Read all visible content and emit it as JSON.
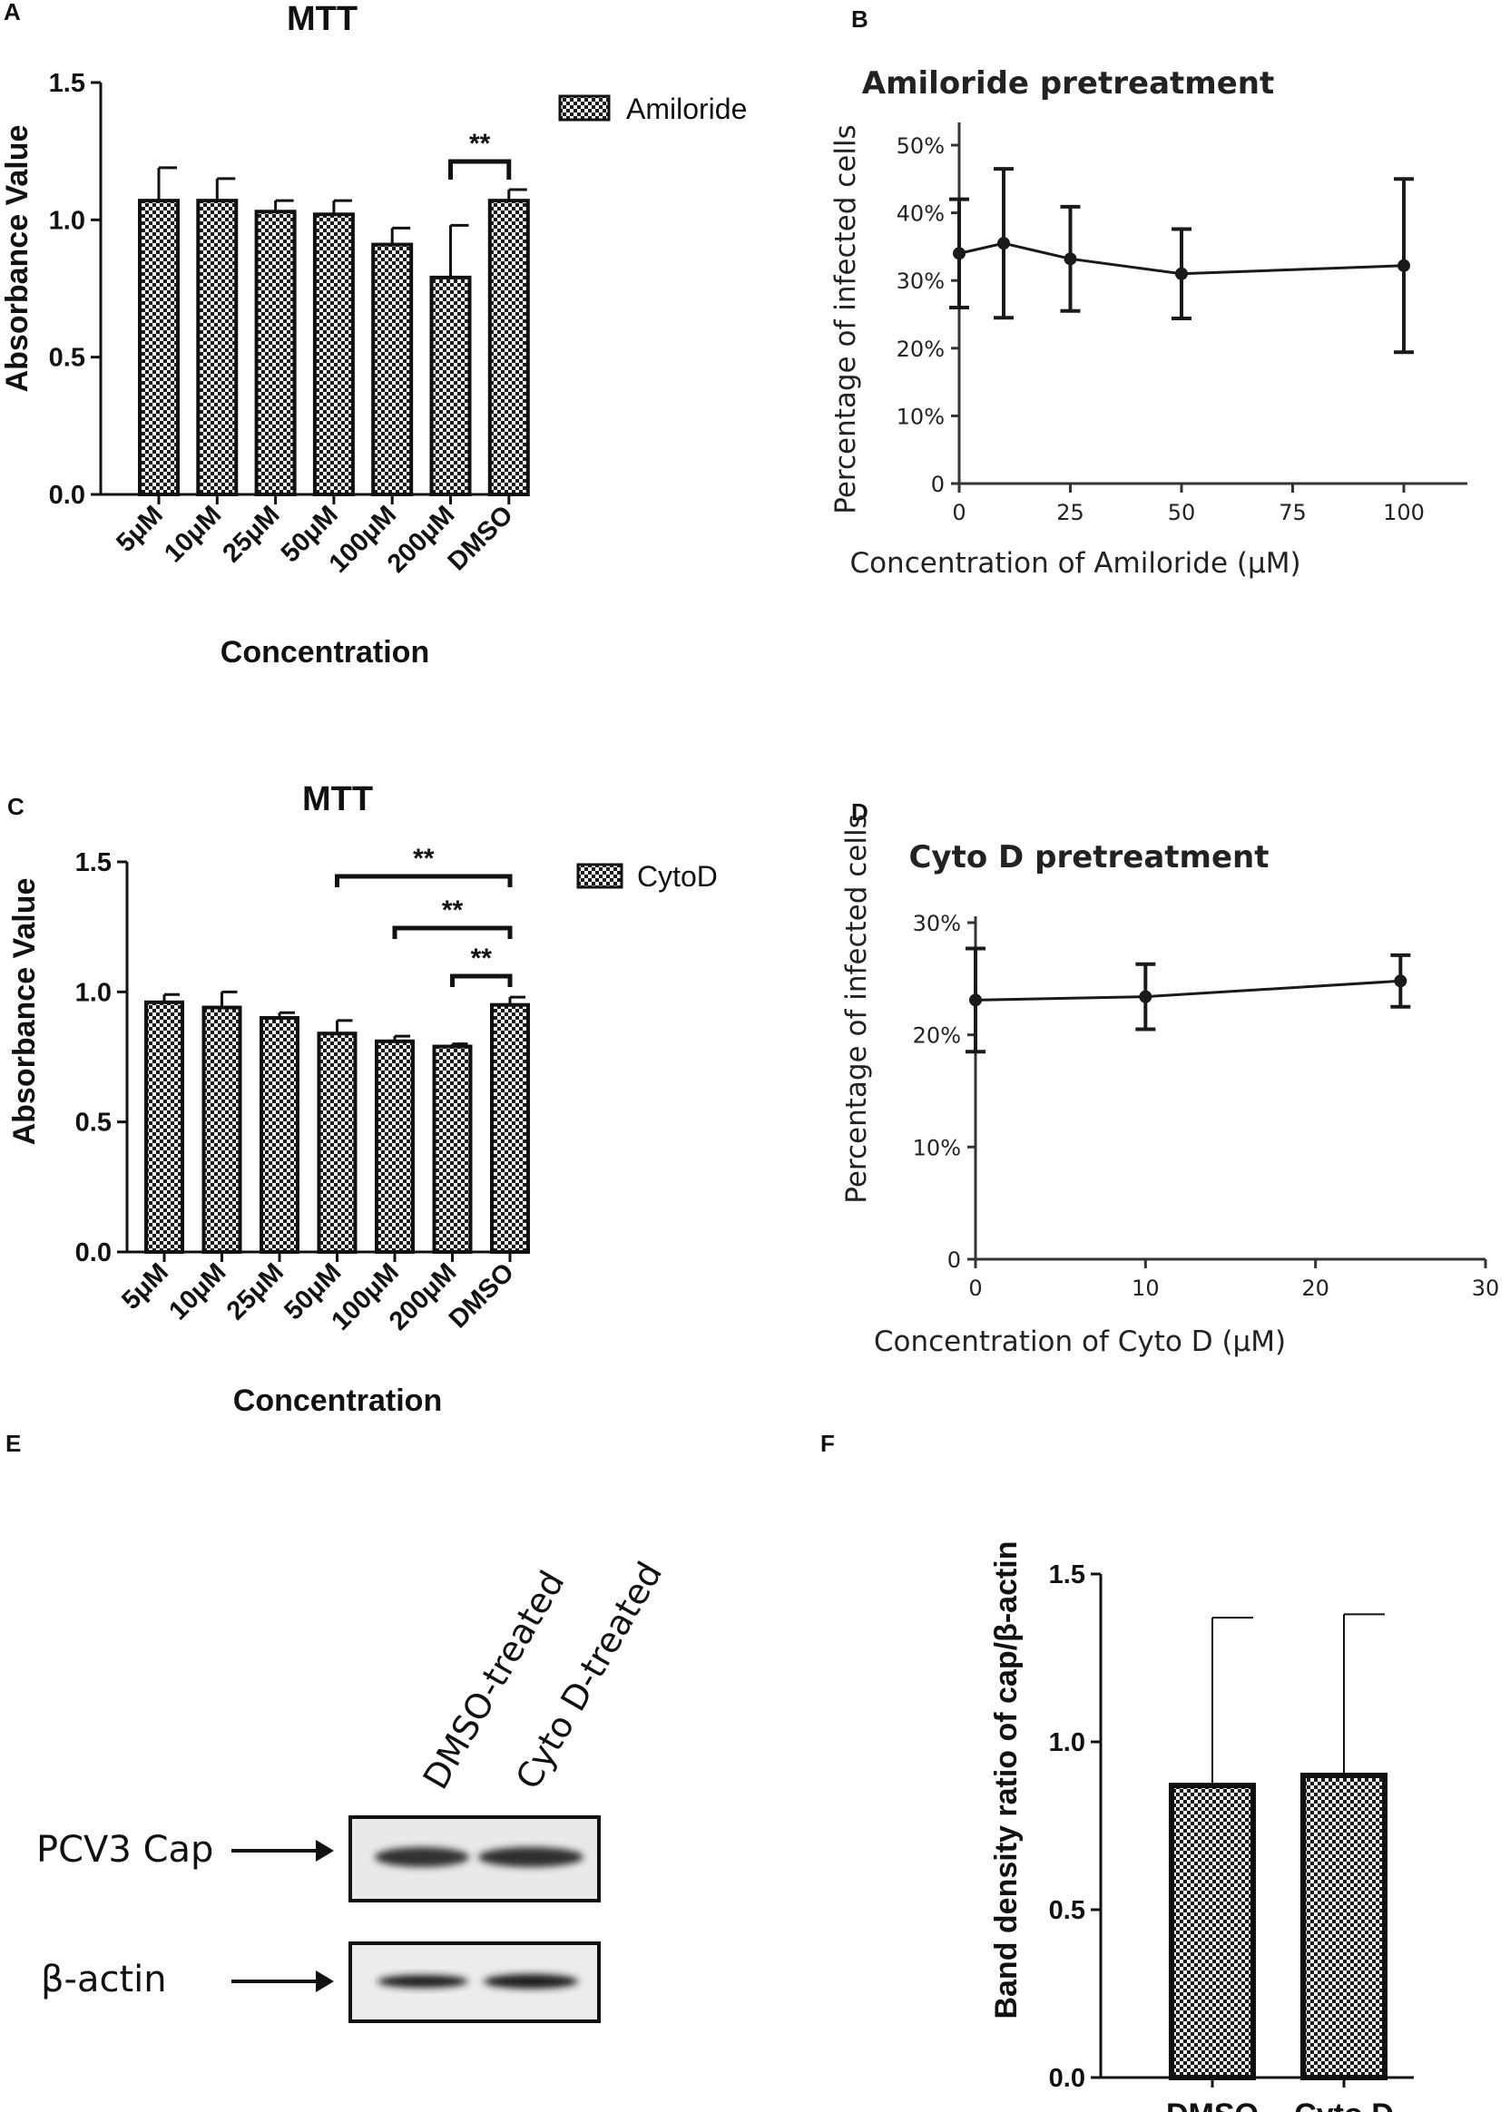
{
  "panel_labels": [
    "A",
    "B",
    "C",
    "D",
    "E",
    "F"
  ],
  "chart_data": [
    {
      "panel": "A",
      "type": "bar",
      "title": "MTT",
      "xlabel": "Concentration",
      "ylabel": "Absorbance Value",
      "categories": [
        "5μM",
        "10μM",
        "25μM",
        "50μM",
        "100μM",
        "200μM",
        "DMSO"
      ],
      "values": [
        1.07,
        1.07,
        1.03,
        1.02,
        0.91,
        0.79,
        1.07
      ],
      "errors": [
        0.12,
        0.08,
        0.04,
        0.05,
        0.06,
        0.19,
        0.04
      ],
      "ylim": [
        0,
        1.5
      ],
      "yticks": [
        "0.0",
        "0.5",
        "1.0",
        "1.5"
      ],
      "legend": [
        "Amiloride"
      ],
      "significance": [
        {
          "from": "200μM",
          "to": "DMSO",
          "label": "**"
        }
      ]
    },
    {
      "panel": "B",
      "type": "line",
      "title": "Amiloride pretreatment",
      "xlabel": "Concentration of Amiloride (μM)",
      "ylabel": "Percentage of infected cells",
      "x": [
        0,
        10,
        25,
        50,
        100
      ],
      "y": [
        34,
        35.5,
        33.2,
        31,
        32.2
      ],
      "errors": [
        8,
        11,
        7.7,
        6.6,
        12.8
      ],
      "xlim": [
        0,
        100
      ],
      "ylim": [
        0,
        50
      ],
      "xticks": [
        "0",
        "25",
        "50",
        "75",
        "100"
      ],
      "yticks": [
        "0",
        "10%",
        "20%",
        "30%",
        "40%",
        "50%"
      ]
    },
    {
      "panel": "C",
      "type": "bar",
      "title": "MTT",
      "xlabel": "Concentration",
      "ylabel": "Absorbance Value",
      "categories": [
        "5μM",
        "10μM",
        "25μM",
        "50μM",
        "100μM",
        "200μM",
        "DMSO"
      ],
      "values": [
        0.96,
        0.94,
        0.9,
        0.84,
        0.81,
        0.79,
        0.95
      ],
      "errors": [
        0.03,
        0.06,
        0.02,
        0.05,
        0.02,
        0.01,
        0.03
      ],
      "ylim": [
        0,
        1.5
      ],
      "yticks": [
        "0.0",
        "0.5",
        "1.0",
        "1.5"
      ],
      "legend": [
        "CytoD"
      ],
      "significance": [
        {
          "from": "50μM",
          "to": "DMSO",
          "label": "**"
        },
        {
          "from": "100μM",
          "to": "DMSO",
          "label": "**"
        },
        {
          "from": "200μM",
          "to": "DMSO",
          "label": "**"
        }
      ]
    },
    {
      "panel": "D",
      "type": "line",
      "title": "Cyto D pretreatment",
      "xlabel": "Concentration of Cyto D (μM)",
      "ylabel": "Percentage of infected cells",
      "x": [
        0,
        10,
        25
      ],
      "y": [
        23.1,
        23.4,
        24.8
      ],
      "errors": [
        4.6,
        2.9,
        2.3
      ],
      "xlim": [
        0,
        30
      ],
      "ylim": [
        0,
        30
      ],
      "xticks": [
        "0",
        "10",
        "20",
        "30"
      ],
      "yticks": [
        "0",
        "10%",
        "20%",
        "30%"
      ]
    },
    {
      "panel": "F",
      "type": "bar",
      "title": "",
      "xlabel": "",
      "ylabel": "Band density ratio of cap/β-actin",
      "categories": [
        "DMSO",
        "Cyto D"
      ],
      "values": [
        0.87,
        0.9
      ],
      "errors": [
        0.5,
        0.48
      ],
      "ylim": [
        0,
        1.5
      ],
      "yticks": [
        "0.0",
        "0.5",
        "1.0",
        "1.5"
      ]
    }
  ],
  "blot": {
    "columns": [
      "DMSO-treated",
      "Cyto D-treated"
    ],
    "rows": [
      "PCV3 Cap",
      "β-actin"
    ]
  }
}
